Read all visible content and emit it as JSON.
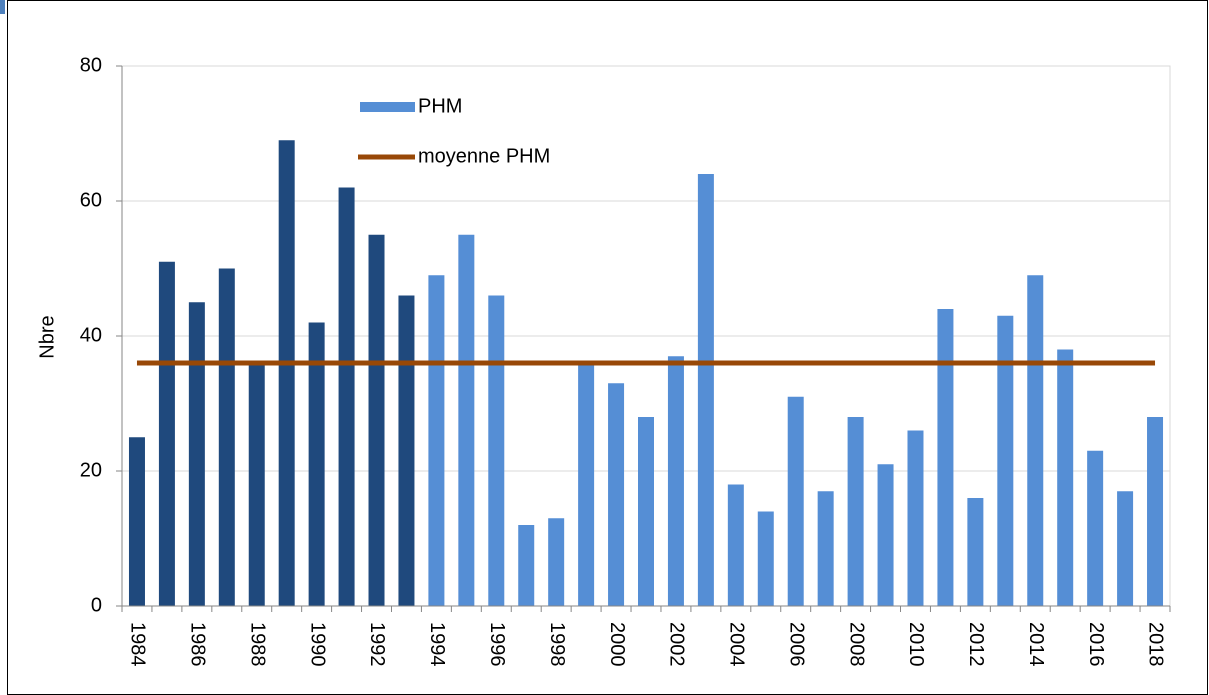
{
  "chart_data": {
    "type": "bar",
    "y_label": "Nbre",
    "categories": [
      "1984",
      null,
      "1986",
      null,
      "1988",
      null,
      "1990",
      null,
      "1992",
      null,
      "1994",
      null,
      "1996",
      null,
      "1998",
      null,
      "2000",
      null,
      "2002",
      null,
      "2004",
      null,
      "2006",
      null,
      "2008",
      null,
      "2010",
      null,
      "2012",
      null,
      "2014",
      null,
      "2016",
      null,
      "2018"
    ],
    "series": [
      {
        "name": "PHM",
        "color": "#558ed5",
        "colors": [
          "#1f497d",
          "#1f497d",
          "#1f497d",
          "#1f497d",
          "#1f497d",
          "#1f497d",
          "#1f497d",
          "#1f497d",
          "#1f497d",
          "#1f497d",
          "#558ed5",
          "#558ed5",
          "#558ed5",
          "#558ed5",
          "#558ed5",
          "#558ed5",
          "#558ed5",
          "#558ed5",
          "#558ed5",
          "#558ed5",
          "#558ed5",
          "#558ed5",
          "#558ed5",
          "#558ed5",
          "#558ed5",
          "#558ed5",
          "#558ed5",
          "#558ed5",
          "#558ed5",
          "#558ed5",
          "#558ed5",
          "#558ed5",
          "#558ed5",
          "#558ed5",
          "#558ed5"
        ],
        "values": [
          25,
          51,
          45,
          50,
          36,
          69,
          42,
          62,
          55,
          46,
          49,
          55,
          46,
          12,
          13,
          36,
          33,
          28,
          37,
          64,
          18,
          14,
          31,
          17,
          28,
          21,
          26,
          44,
          16,
          43,
          49,
          38,
          23,
          17,
          28
        ]
      },
      {
        "name": "moyenne PHM",
        "type": "line",
        "color": "#984807",
        "values": [
          36,
          36,
          36,
          36,
          36,
          36,
          36,
          36,
          36,
          36,
          36,
          36,
          36,
          36,
          36,
          36,
          36,
          36,
          36,
          36,
          36,
          36,
          36,
          36,
          36,
          36,
          36,
          36,
          36,
          36,
          36,
          36,
          36,
          36,
          36
        ]
      }
    ],
    "ylim": [
      0,
      80
    ],
    "yticks": [
      0,
      20,
      40,
      60,
      80
    ],
    "grid": true
  }
}
